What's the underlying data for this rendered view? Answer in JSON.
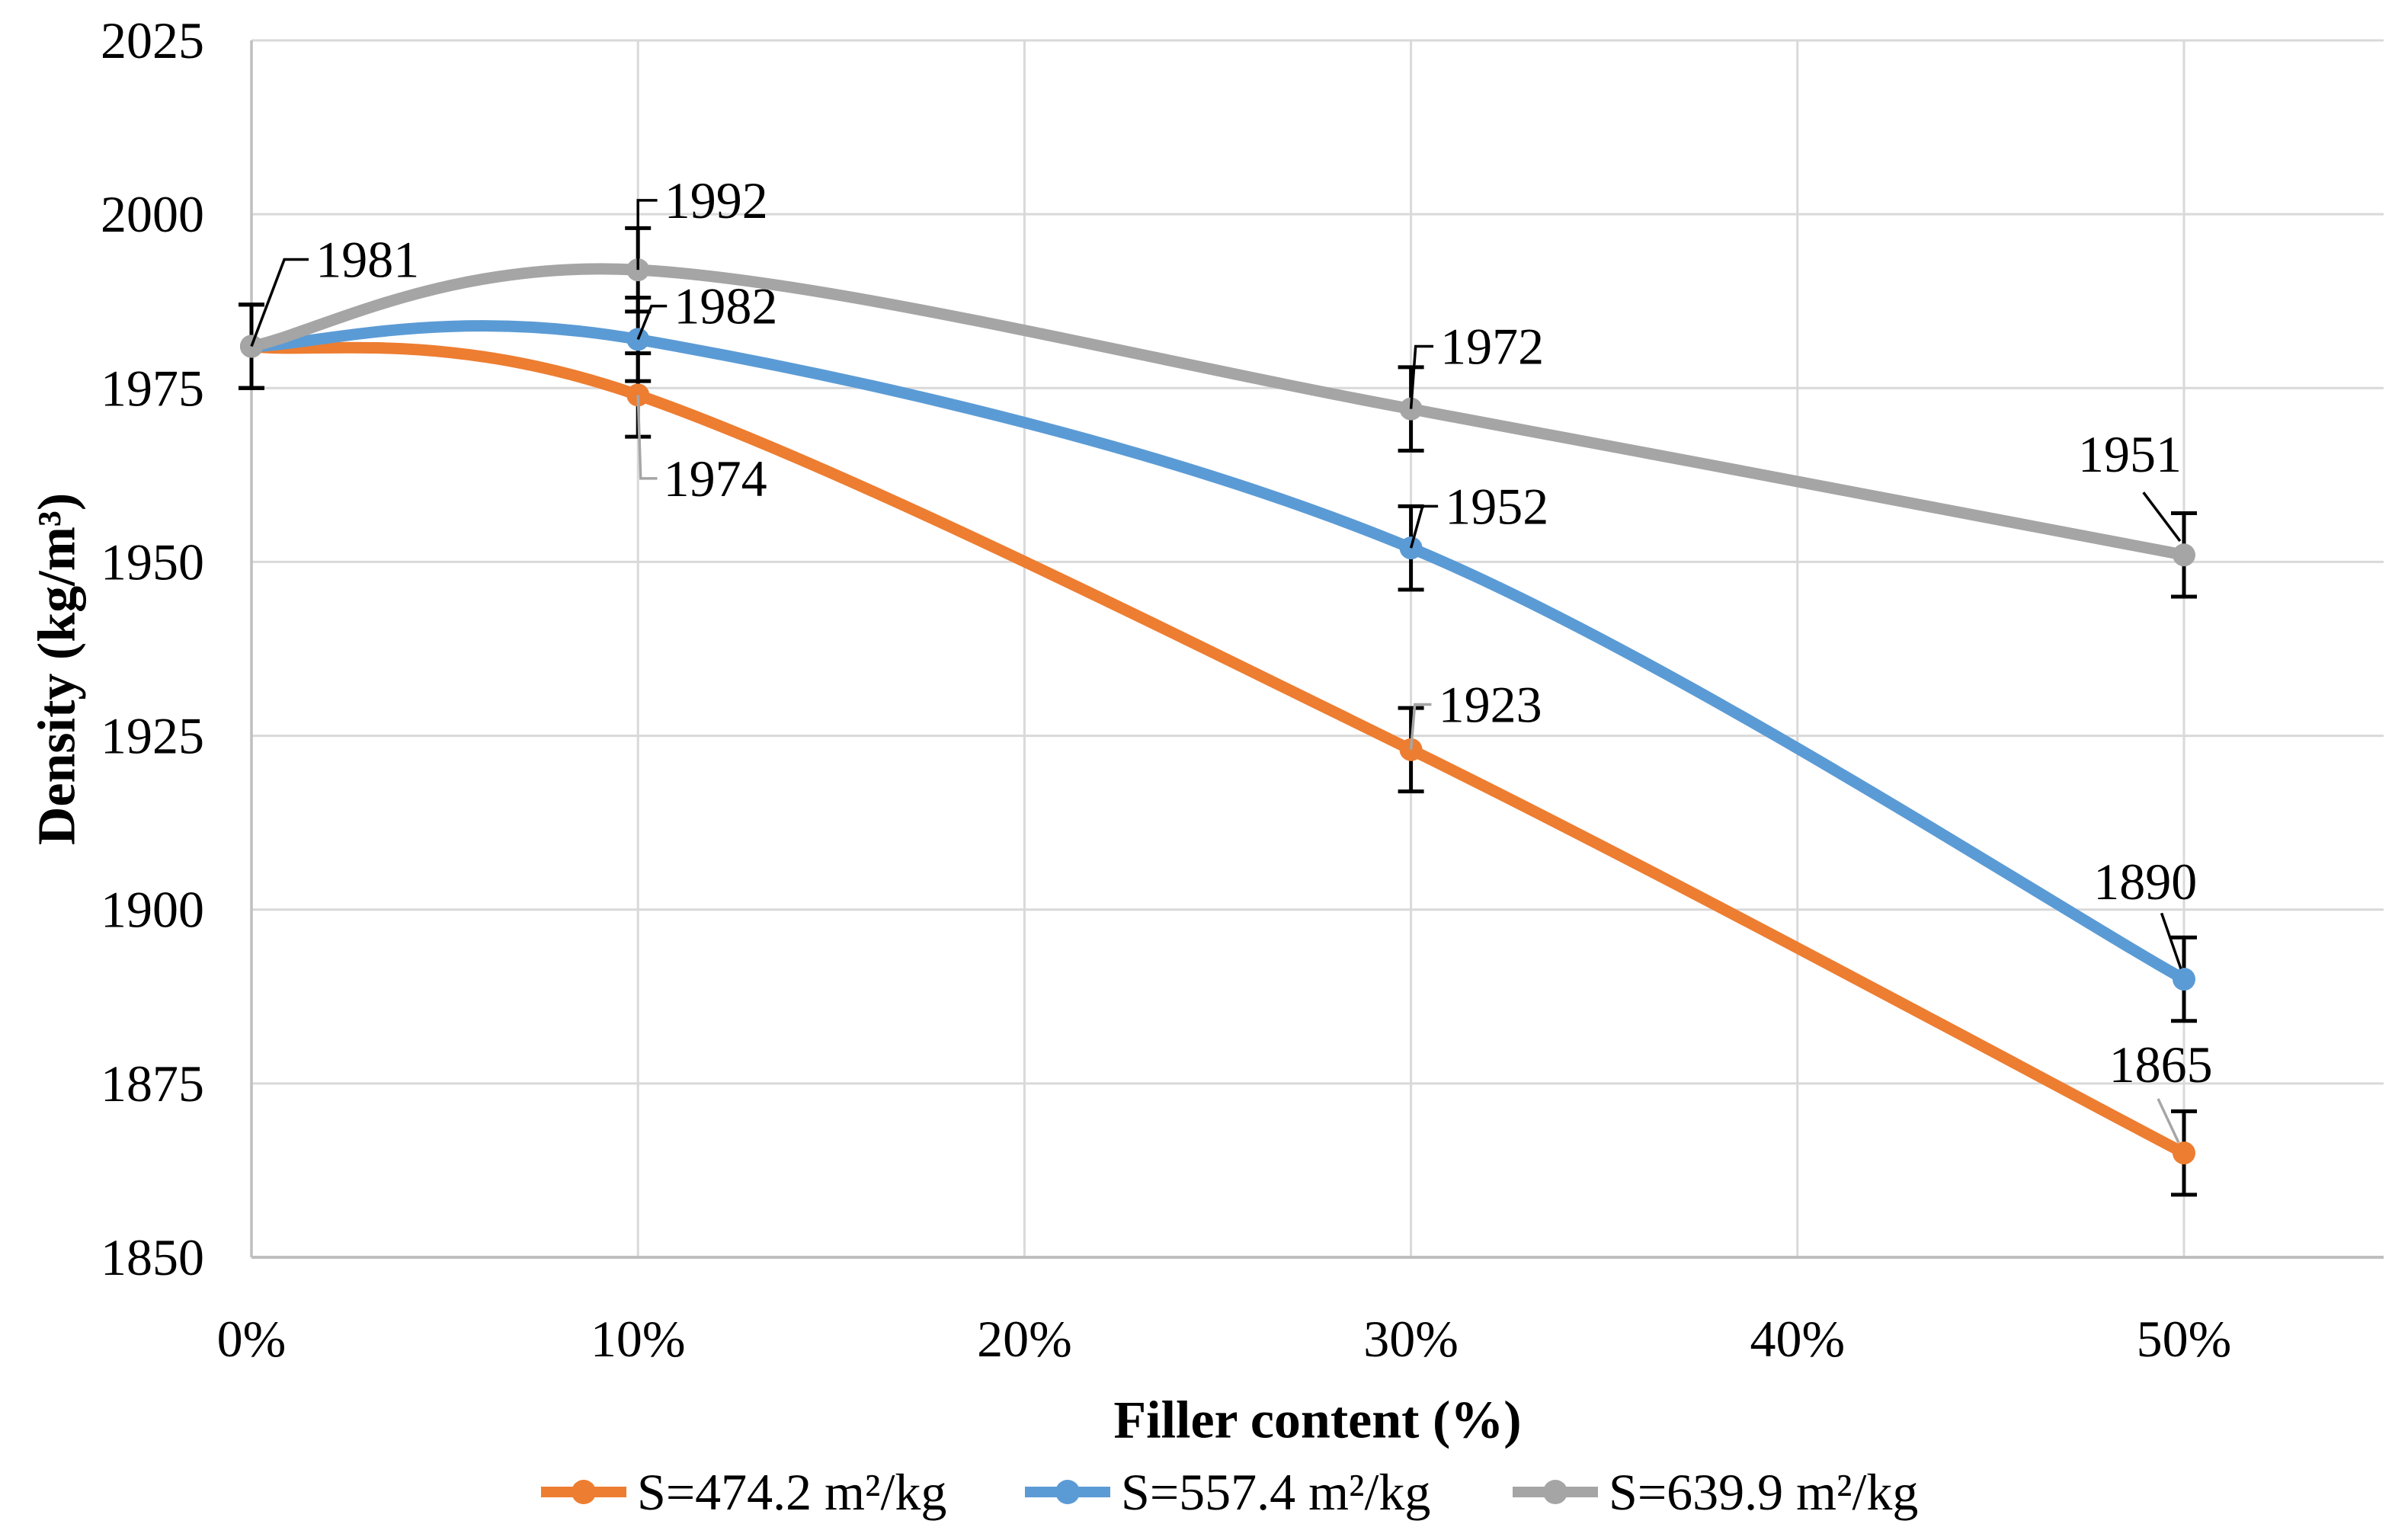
{
  "chart_data": {
    "type": "line",
    "title": "",
    "xlabel": "Filler content (%)",
    "ylabel": "Density (kg/m³)",
    "x_ticks": [
      "0%",
      "10%",
      "20%",
      "30%",
      "40%",
      "50%"
    ],
    "x_tick_values": [
      0,
      10,
      20,
      30,
      40,
      50
    ],
    "x_points_pct": [
      0,
      10,
      30,
      50
    ],
    "ylim": [
      1850,
      2025
    ],
    "y_ticks": [
      "2025",
      "2000",
      "1975",
      "1950",
      "1925",
      "1900",
      "1875",
      "1850"
    ],
    "y_tick_values": [
      2025,
      2000,
      1975,
      1950,
      1925,
      1900,
      1875,
      1850
    ],
    "grid": true,
    "legend_position": "bottom",
    "error_bar_plus_minus": 6,
    "series": [
      {
        "name": "S=474.2 m²/kg",
        "color": "#ED7D31",
        "values": [
          1981,
          1974,
          1923,
          1865
        ]
      },
      {
        "name": "S=557.4 m²/kg",
        "color": "#5B9BD5",
        "values": [
          1981,
          1982,
          1952,
          1890
        ]
      },
      {
        "name": "S=639.9 m²/kg",
        "color": "#A5A5A5",
        "values": [
          1981,
          1992,
          1972,
          1951
        ]
      }
    ],
    "data_labels": [
      {
        "text": "1981",
        "series": 2,
        "point": 0,
        "leader_color": "#000000",
        "leader": [
          [
            0,
            1981
          ],
          [
            0.85,
            1993.5
          ],
          [
            1.48,
            1993.5
          ]
        ],
        "anchor": "start",
        "x": 1.66,
        "value": 1993.5
      },
      {
        "text": "1992",
        "series": 2,
        "point": 1,
        "leader_color": "#000000",
        "leader": [
          [
            10,
            1992
          ],
          [
            10,
            2002
          ],
          [
            10.5,
            2002
          ]
        ],
        "anchor": "start",
        "x": 10.68,
        "value": 2002
      },
      {
        "text": "1982",
        "series": 1,
        "point": 1,
        "leader_color": "#000000",
        "leader": [
          [
            10,
            1982
          ],
          [
            10.35,
            1986.8
          ],
          [
            10.75,
            1986.8
          ]
        ],
        "anchor": "start",
        "x": 10.93,
        "value": 1986.8
      },
      {
        "text": "1974",
        "series": 0,
        "point": 1,
        "leader_color": "#A6A6A6",
        "leader": [
          [
            10,
            1974
          ],
          [
            10.07,
            1962
          ],
          [
            10.5,
            1962
          ]
        ],
        "anchor": "start",
        "x": 10.66,
        "value": 1962
      },
      {
        "text": "1972",
        "series": 2,
        "point": 2,
        "leader_color": "#000000",
        "leader": [
          [
            30,
            1972
          ],
          [
            30.12,
            1981
          ],
          [
            30.58,
            1981
          ]
        ],
        "anchor": "start",
        "x": 30.76,
        "value": 1981
      },
      {
        "text": "1952",
        "series": 1,
        "point": 2,
        "leader_color": "#000000",
        "leader": [
          [
            30,
            1952
          ],
          [
            30.3,
            1958
          ],
          [
            30.7,
            1958
          ]
        ],
        "anchor": "start",
        "x": 30.88,
        "value": 1958
      },
      {
        "text": "1923",
        "series": 0,
        "point": 2,
        "leader_color": "#A6A6A6",
        "leader": [
          [
            30,
            1923
          ],
          [
            30.1,
            1929.5
          ],
          [
            30.53,
            1929.5
          ]
        ],
        "anchor": "start",
        "x": 30.71,
        "value": 1929.5
      },
      {
        "text": "1951",
        "series": 2,
        "point": 3,
        "leader_color": "#000000",
        "leader": [
          [
            49.9,
            1953
          ],
          [
            48.95,
            1960
          ]
        ],
        "anchor": "middle",
        "x": 48.6,
        "value": 1965.5
      },
      {
        "text": "1890",
        "series": 1,
        "point": 3,
        "leader_color": "#000000",
        "leader": [
          [
            49.92,
            1891.5
          ],
          [
            49.42,
            1899.5
          ]
        ],
        "anchor": "middle",
        "x": 49.0,
        "value": 1904
      },
      {
        "text": "1865",
        "series": 0,
        "point": 3,
        "leader_color": "#A6A6A6",
        "leader": [
          [
            49.86,
            1866.5
          ],
          [
            49.33,
            1872.8
          ]
        ],
        "anchor": "middle",
        "x": 49.4,
        "value": 1877.7
      }
    ],
    "colors": {
      "gridline": "#D9D9D9",
      "axis_line": "#BFBFBF",
      "error_bar": "#000000",
      "label_text": "#000000",
      "tick_text": "#000000",
      "background": "#FFFFFF"
    }
  }
}
